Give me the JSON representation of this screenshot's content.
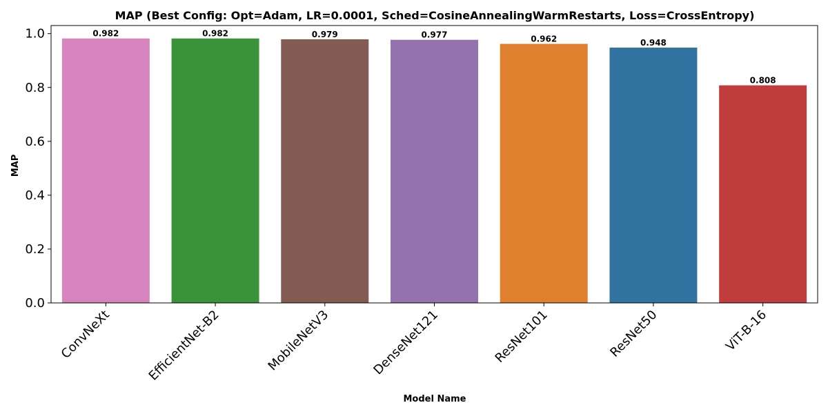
{
  "chart_data": {
    "type": "bar",
    "title": "MAP (Best Config: Opt=Adam, LR=0.0001, Sched=CosineAnnealingWarmRestarts, Loss=CrossEntropy)",
    "xlabel": "Model Name",
    "ylabel": "MAP",
    "categories": [
      "ConvNeXt",
      "EfficientNet-B2",
      "MobileNetV3",
      "DenseNet121",
      "ResNet101",
      "ResNet50",
      "ViT-B-16"
    ],
    "values": [
      0.982,
      0.982,
      0.979,
      0.977,
      0.962,
      0.948,
      0.808
    ],
    "value_labels": [
      "0.982",
      "0.982",
      "0.979",
      "0.977",
      "0.962",
      "0.948",
      "0.808"
    ],
    "colors": [
      "#d684bd",
      "#3a923a",
      "#835b52",
      "#9372ae",
      "#e07f2d",
      "#3274a1",
      "#c03d3e"
    ],
    "ylim": [
      0,
      1.03
    ],
    "yticks": [
      0.0,
      0.2,
      0.4,
      0.6,
      0.8,
      1.0
    ],
    "ytick_labels": [
      "0.0",
      "0.2",
      "0.4",
      "0.6",
      "0.8",
      "1.0"
    ],
    "grid": false,
    "legend": "none"
  }
}
